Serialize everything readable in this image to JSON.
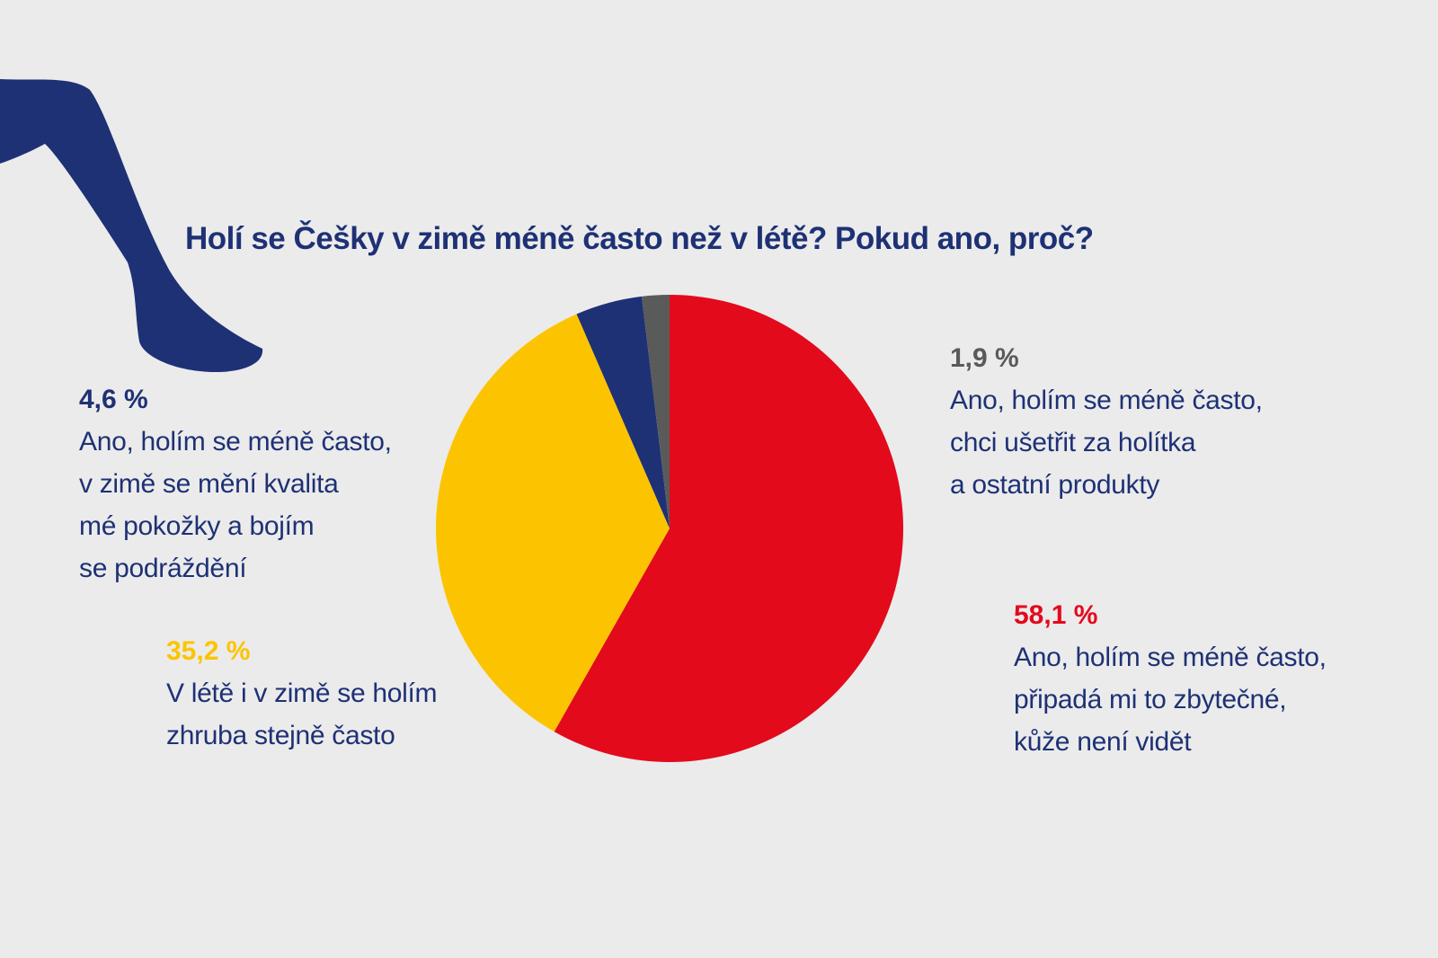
{
  "chart_data": {
    "type": "pie",
    "title": "Holí se Češky v zimě méně často než v létě? Pokud ano, proč?",
    "categories": [
      "Ano, holím se méně často,\npřipadá mi to zbytečné,\nkůže není vidět",
      "V létě i v zimě se holím\nzhruba stejně často",
      "Ano, holím se méně často,\nv zimě se mění kvalita\nmé pokožky a bojím\nse podráždění",
      "Ano, holím se méně často,\nchci ušetřit za holítka\na ostatní produkty"
    ],
    "values": [
      58.1,
      35.2,
      4.6,
      1.9
    ],
    "value_labels": [
      "58,1 %",
      "35,2 %",
      "4,6 %",
      "1,9 %"
    ],
    "colors": [
      "#e30a1c",
      "#fcc400",
      "#1e3175",
      "#5a5a5a"
    ]
  }
}
